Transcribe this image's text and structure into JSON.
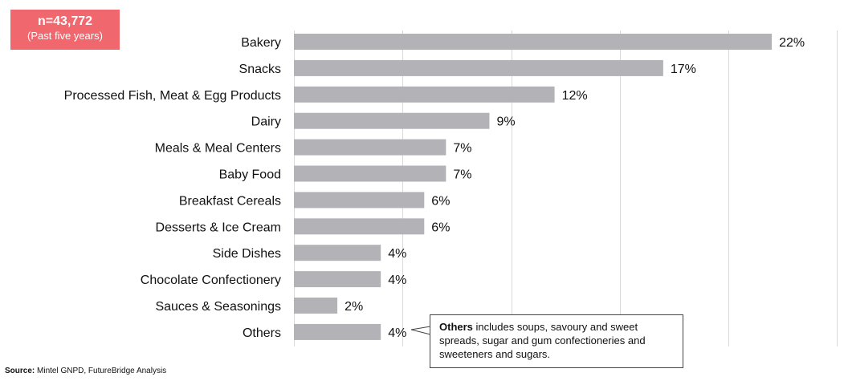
{
  "badge": {
    "count": "n=43,772",
    "period": "(Past five years)"
  },
  "chart_data": {
    "type": "bar",
    "orientation": "horizontal",
    "categories": [
      "Bakery",
      "Snacks",
      "Processed Fish, Meat & Egg Products",
      "Dairy",
      "Meals &  Meal Centers",
      "Baby Food",
      "Breakfast Cereals",
      "Desserts & Ice Cream",
      "Side Dishes",
      "Chocolate Confectionery",
      "Sauces & Seasonings",
      "Others"
    ],
    "values": [
      22,
      17,
      12,
      9,
      7,
      7,
      6,
      6,
      4,
      4,
      2,
      4
    ],
    "value_labels": [
      "22%",
      "17%",
      "12%",
      "9%",
      "7%",
      "7%",
      "6%",
      "6%",
      "4%",
      "4%",
      "2%",
      "4%"
    ],
    "xlim": [
      0,
      25
    ],
    "grid": "vertical",
    "bar_color": "#b3b2b7"
  },
  "callout": {
    "bold": "Others",
    "text": " includes soups, savoury and sweet spreads, sugar and gum confectioneries and sweeteners and sugars."
  },
  "source": {
    "label": "Source:",
    "text": " Mintel GNPD, FutureBridge Analysis"
  }
}
